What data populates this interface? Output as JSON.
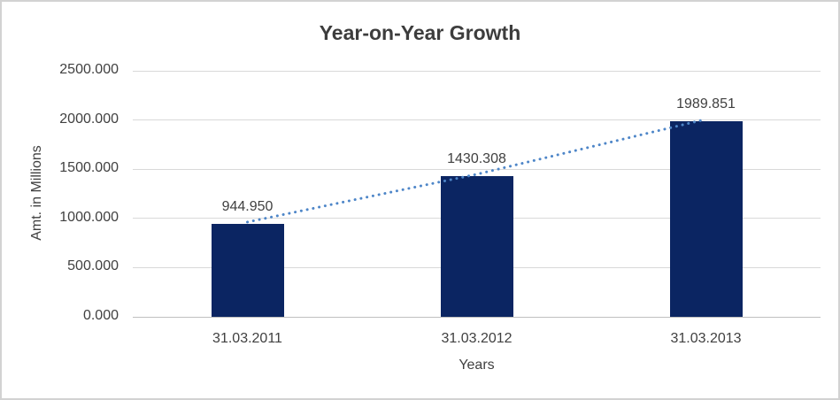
{
  "frame": {
    "background": "#ffffff",
    "border_color": "#d2d2d2"
  },
  "chart_data": {
    "type": "bar",
    "title": "Year-on-Year Growth",
    "categories": [
      "31.03.2011",
      "31.03.2012",
      "31.03.2013"
    ],
    "values": [
      944.95,
      1430.308,
      1989.851
    ],
    "data_labels": [
      "944.950",
      "1430.308",
      "1989.851"
    ],
    "xlabel": "Years",
    "ylabel": "Amt. in Millions",
    "ylim": [
      0,
      2500
    ],
    "ytick_step": 500,
    "yticks": [
      {
        "value": 2500,
        "label": "2500.000"
      },
      {
        "value": 2000,
        "label": "2000.000"
      },
      {
        "value": 1500,
        "label": "1500.000"
      },
      {
        "value": 1000,
        "label": "1000.000"
      },
      {
        "value": 500,
        "label": "500.000"
      },
      {
        "value": 0,
        "label": "0.000"
      }
    ],
    "grid": true,
    "legend": false,
    "bar_color": "#0b2562",
    "trendline": {
      "style": "dotted",
      "color": "#4e86c8",
      "connects": [
        944.95,
        1430.308,
        1989.851
      ]
    },
    "text_color": "#404040",
    "gridline_color": "#d9d9d9",
    "axis_line_color": "#bfbfbf"
  }
}
